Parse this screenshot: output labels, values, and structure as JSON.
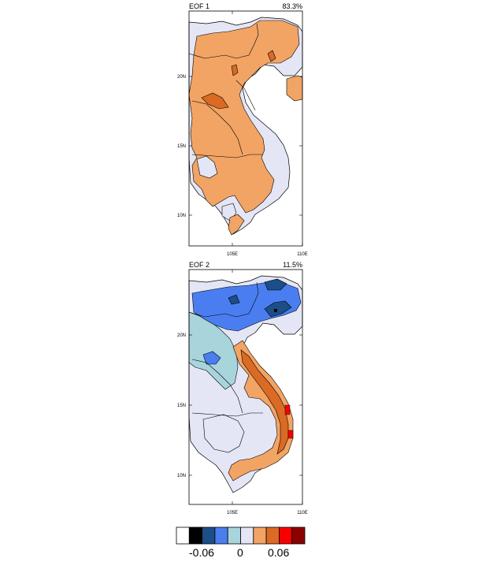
{
  "panels": [
    {
      "title": "EOF 1",
      "variance": "83.3%"
    },
    {
      "title": "EOF 2",
      "variance": "11.5%"
    }
  ],
  "axes": {
    "lat_labels": [
      "20N",
      "15N",
      "10N"
    ],
    "lon_labels": [
      "105E",
      "110E"
    ]
  },
  "colorbar": {
    "labels": [
      "-0.06",
      "0",
      "0.06"
    ],
    "colors": [
      "#ffffff",
      "#000000",
      "#1c4e88",
      "#4a7ef0",
      "#a8d4dc",
      "#e4e6f6",
      "#f2a464",
      "#da6a24",
      "#f80000",
      "#8c0000"
    ]
  },
  "colors": {
    "land_low": "#e4e6f6",
    "orange": "#f2a464",
    "dark_orange": "#da6a24",
    "light_blue": "#a8d4dc",
    "blue": "#4a7ef0",
    "dark_blue": "#1c4e88",
    "red": "#f80000",
    "black": "#000000"
  }
}
